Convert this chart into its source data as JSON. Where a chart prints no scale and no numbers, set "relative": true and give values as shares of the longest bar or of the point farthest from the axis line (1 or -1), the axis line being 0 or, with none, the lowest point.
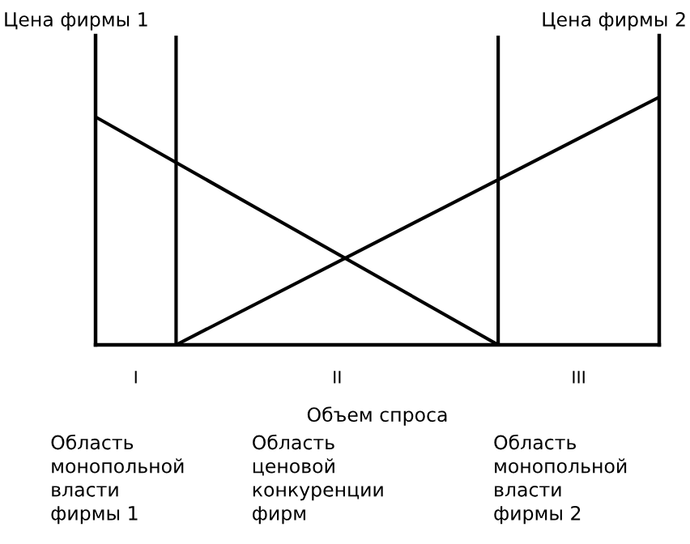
{
  "chart_data": {
    "type": "line",
    "relative": true,
    "categories": [
      null,
      null,
      null,
      null,
      null,
      null,
      null,
      null
    ],
    "ylabel": "Цена фирмы 1",
    "y2label": "Цена фирмы 2",
    "xlabel": "Объем спроса",
    "series": [
      {
        "color": "#000000",
        "values": [
          0.92,
          null,
          null,
          null,
          null,
          0,
          null,
          null
        ]
      },
      {
        "color": "#000000",
        "values": [
          null,
          0,
          null,
          null,
          null,
          null,
          null,
          1
        ]
      }
    ],
    "annotations": [
      "I",
      "II",
      "III",
      "Область\nмонопольной\nвласти\nфирмы 1",
      "Область\nценовой\nконкуренции\nфирм",
      "Область\nмонопольной\nвласти\nфирмы 2"
    ],
    "grid": false,
    "legend": false,
    "marker": "none",
    "line_style": "solid"
  }
}
